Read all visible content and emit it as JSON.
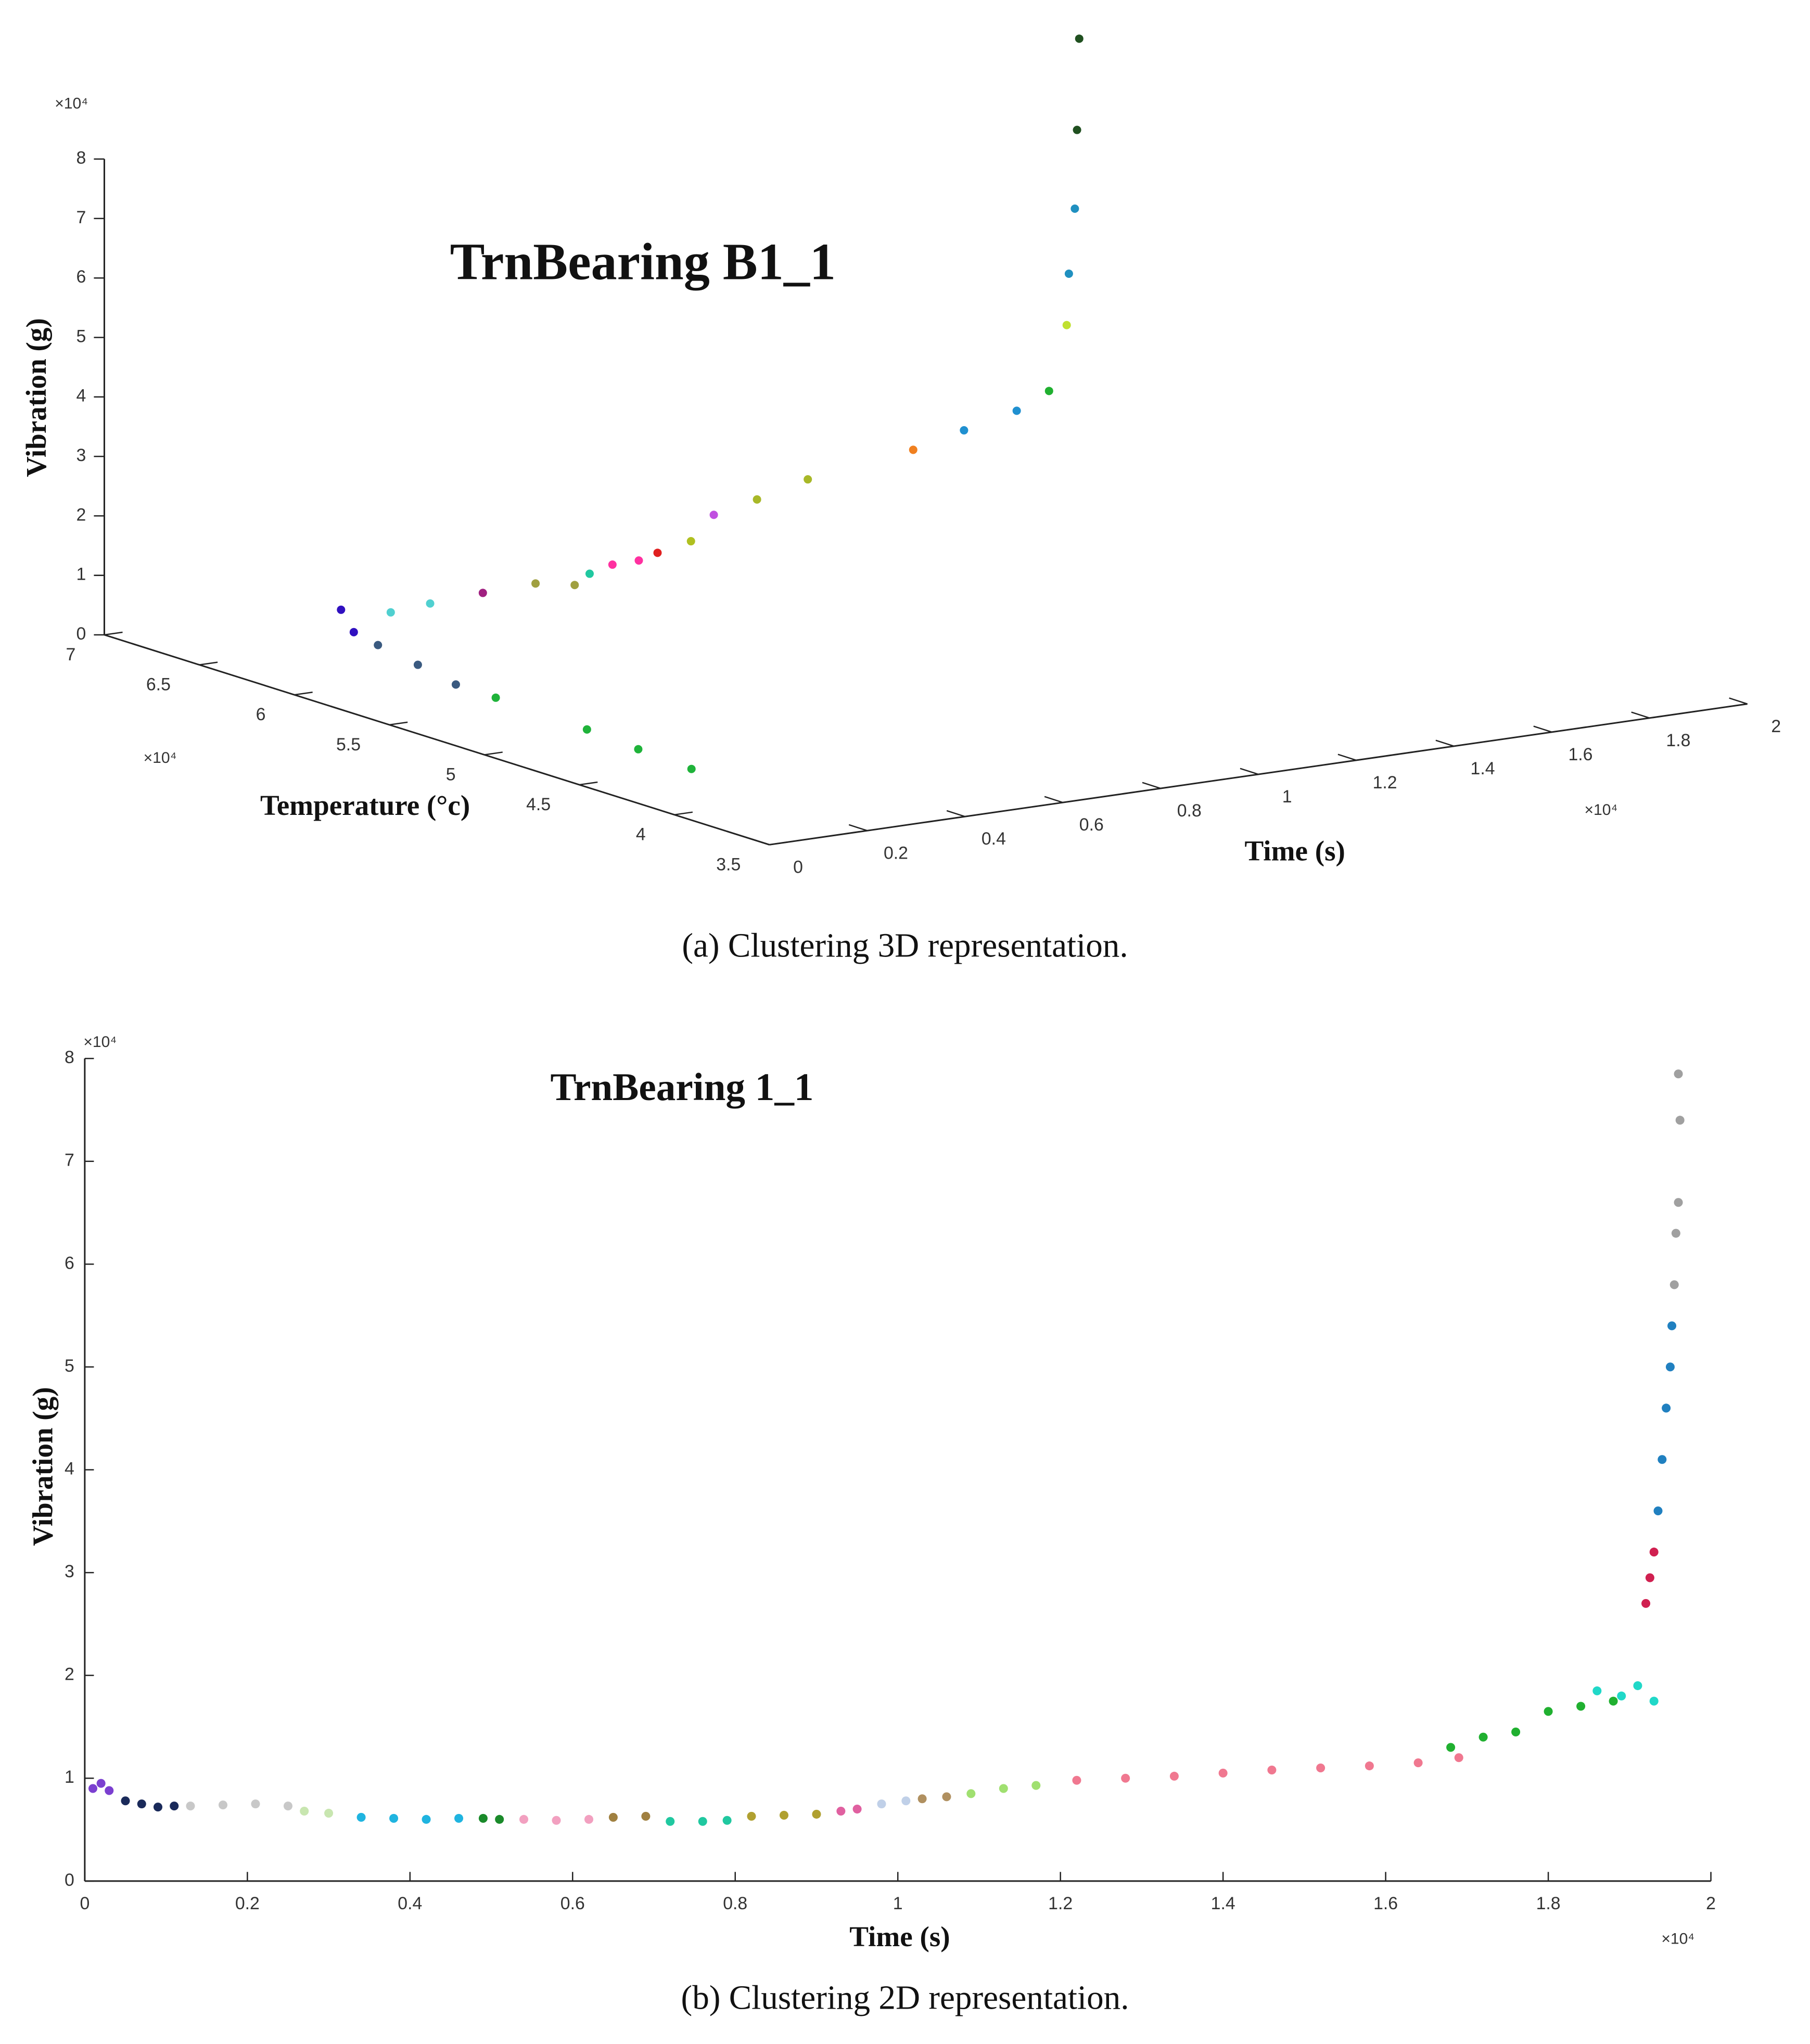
{
  "chart_data": [
    {
      "type": "scatter3d",
      "title": "TrnBearing B1_1",
      "caption": "(a) Clustering 3D representation.",
      "xlabel": "Time (s)",
      "ylabel": "Temperature (°c)",
      "zlabel": "Vibration (g)",
      "x_multiplier": "×10⁴",
      "y_multiplier": "×10⁴",
      "z_multiplier": "×10⁴",
      "xlim": [
        0,
        2
      ],
      "ylim": [
        3.5,
        7
      ],
      "zlim": [
        0,
        8
      ],
      "xticks": [
        0,
        0.2,
        0.4,
        0.6,
        0.8,
        1,
        1.2,
        1.4,
        1.6,
        1.8,
        2
      ],
      "yticks": [
        3.5,
        4,
        4.5,
        5,
        5.5,
        6,
        6.5,
        7
      ],
      "zticks": [
        0,
        1,
        2,
        3,
        4,
        5,
        6,
        7,
        8
      ],
      "series": [
        {
          "color": "#1fb33a",
          "x": [
            0,
            0,
            0,
            0
          ],
          "y": [
            3.91,
            4.19,
            4.46,
            4.94
          ],
          "z": [
            0.86,
            0.91,
            0.97,
            1.02
          ]
        },
        {
          "color": "#3a5a80",
          "x": [
            0,
            0,
            0
          ],
          "y": [
            5.15,
            5.35,
            5.56
          ],
          "z": [
            1.03,
            1.16,
            1.28
          ]
        },
        {
          "color": "#3010c0",
          "x": [
            0.005,
            0.01
          ],
          "y": [
            5.7,
            5.78
          ],
          "z": [
            1.35,
            1.64
          ]
        },
        {
          "color": "#50d0d0",
          "x": [
            0.1,
            0.2
          ],
          "y": [
            5.75,
            5.8
          ],
          "z": [
            1.52,
            1.5
          ]
        },
        {
          "color": "#a02080",
          "x": [
            0.3
          ],
          "y": [
            5.78
          ],
          "z": [
            1.58
          ]
        },
        {
          "color": "#a0a040",
          "x": [
            0.4,
            0.48
          ],
          "y": [
            5.76,
            5.76
          ],
          "z": [
            1.64,
            1.52
          ]
        },
        {
          "color": "#20c8a0",
          "x": [
            0.53
          ],
          "y": [
            5.81
          ],
          "z": [
            1.6
          ]
        },
        {
          "color": "#ff30a0",
          "x": [
            0.6,
            0.65
          ],
          "y": [
            5.87,
            5.86
          ],
          "z": [
            1.61,
            1.63
          ]
        },
        {
          "color": "#e02020",
          "x": [
            0.7
          ],
          "y": [
            5.89
          ],
          "z": [
            1.67
          ]
        },
        {
          "color": "#b0c020",
          "x": [
            0.78
          ],
          "y": [
            5.92
          ],
          "z": [
            1.74
          ]
        },
        {
          "color": "#c050e0",
          "x": [
            0.85
          ],
          "y": [
            5.98
          ],
          "z": [
            2.04
          ]
        },
        {
          "color": "#a8b828",
          "x": [
            0.95,
            1.05
          ],
          "y": [
            6.01,
            6
          ],
          "z": [
            2.15,
            2.38
          ]
        },
        {
          "color": "#f08020",
          "x": [
            1.25
          ],
          "y": [
            5.96
          ],
          "z": [
            2.68
          ]
        },
        {
          "color": "#2090d0",
          "x": [
            1.35,
            1.45
          ],
          "y": [
            5.95,
            5.93
          ],
          "z": [
            2.9,
            3.13
          ]
        },
        {
          "color": "#20b030",
          "x": [
            1.52
          ],
          "y": [
            5.94
          ],
          "z": [
            3.37
          ]
        },
        {
          "color": "#c0e030",
          "x": [
            1.56
          ],
          "y": [
            5.95
          ],
          "z": [
            4.42
          ]
        },
        {
          "color": "#2090c0",
          "x": [
            1.58,
            1.6
          ],
          "y": [
            5.99,
            6.01
          ],
          "z": [
            5.22,
            6.27
          ]
        },
        {
          "color": "#205020",
          "x": [
            1.62,
            1.64
          ],
          "y": [
            6.05,
            6.09
          ],
          "z": [
            7.53,
            9.0
          ]
        }
      ]
    },
    {
      "type": "scatter",
      "title": "TrnBearing 1_1",
      "caption": "(b) Clustering 2D representation.",
      "xlabel": "Time (s)",
      "ylabel": "Vibration (g)",
      "x_multiplier": "×10⁴",
      "y_multiplier": "×10⁴",
      "xlim": [
        0,
        2
      ],
      "ylim": [
        0,
        8
      ],
      "xticks": [
        0,
        0.2,
        0.4,
        0.6,
        0.8,
        1,
        1.2,
        1.4,
        1.6,
        1.8,
        2
      ],
      "yticks": [
        0,
        1,
        2,
        3,
        4,
        5,
        6,
        7,
        8
      ],
      "series": [
        {
          "color": "#7b3fd0",
          "x": [
            0.01,
            0.02,
            0.03
          ],
          "y": [
            0.9,
            0.95,
            0.88
          ]
        },
        {
          "color": "#1a2a5a",
          "x": [
            0.05,
            0.07,
            0.09,
            0.11
          ],
          "y": [
            0.78,
            0.75,
            0.72,
            0.73
          ]
        },
        {
          "color": "#c8c8c8",
          "x": [
            0.13,
            0.17,
            0.21,
            0.25
          ],
          "y": [
            0.73,
            0.74,
            0.75,
            0.73
          ]
        },
        {
          "color": "#c8e6b0",
          "x": [
            0.27,
            0.3
          ],
          "y": [
            0.68,
            0.66
          ]
        },
        {
          "color": "#1fb4e0",
          "x": [
            0.34,
            0.38,
            0.42,
            0.46
          ],
          "y": [
            0.62,
            0.61,
            0.6,
            0.61
          ]
        },
        {
          "color": "#1a8a2a",
          "x": [
            0.49,
            0.51
          ],
          "y": [
            0.61,
            0.6
          ]
        },
        {
          "color": "#f2a0c0",
          "x": [
            0.54,
            0.58,
            0.62
          ],
          "y": [
            0.6,
            0.59,
            0.6
          ]
        },
        {
          "color": "#a08040",
          "x": [
            0.65,
            0.69
          ],
          "y": [
            0.62,
            0.63
          ]
        },
        {
          "color": "#20c8a0",
          "x": [
            0.72,
            0.76,
            0.79
          ],
          "y": [
            0.58,
            0.58,
            0.59
          ]
        },
        {
          "color": "#b0a030",
          "x": [
            0.82,
            0.86,
            0.9
          ],
          "y": [
            0.63,
            0.64,
            0.65
          ]
        },
        {
          "color": "#e060a0",
          "x": [
            0.93,
            0.95
          ],
          "y": [
            0.68,
            0.7
          ]
        },
        {
          "color": "#c0d0e8",
          "x": [
            0.98,
            1.01
          ],
          "y": [
            0.75,
            0.78
          ]
        },
        {
          "color": "#b09060",
          "x": [
            1.03,
            1.06
          ],
          "y": [
            0.8,
            0.82
          ]
        },
        {
          "color": "#a0e070",
          "x": [
            1.09,
            1.13,
            1.17
          ],
          "y": [
            0.85,
            0.9,
            0.93
          ]
        },
        {
          "color": "#f07890",
          "x": [
            1.22,
            1.28,
            1.34,
            1.4,
            1.46,
            1.52,
            1.58,
            1.64,
            1.69
          ],
          "y": [
            0.98,
            1.0,
            1.02,
            1.05,
            1.08,
            1.1,
            1.12,
            1.15,
            1.2
          ]
        },
        {
          "color": "#20b030",
          "x": [
            1.68,
            1.72,
            1.76,
            1.8,
            1.84,
            1.88
          ],
          "y": [
            1.3,
            1.4,
            1.45,
            1.65,
            1.7,
            1.75
          ]
        },
        {
          "color": "#20d8c8",
          "x": [
            1.86,
            1.89,
            1.91,
            1.93
          ],
          "y": [
            1.85,
            1.8,
            1.9,
            1.75
          ]
        },
        {
          "color": "#d02050",
          "x": [
            1.92,
            1.925,
            1.93
          ],
          "y": [
            2.7,
            2.95,
            3.2
          ]
        },
        {
          "color": "#2080c0",
          "x": [
            1.935,
            1.94,
            1.945,
            1.95,
            1.952
          ],
          "y": [
            3.6,
            4.1,
            4.6,
            5.0,
            5.4
          ]
        },
        {
          "color": "#a0a0a0",
          "x": [
            1.955,
            1.957,
            1.96,
            1.962,
            1.96
          ],
          "y": [
            5.8,
            6.3,
            6.6,
            7.4,
            7.85
          ]
        }
      ]
    }
  ]
}
